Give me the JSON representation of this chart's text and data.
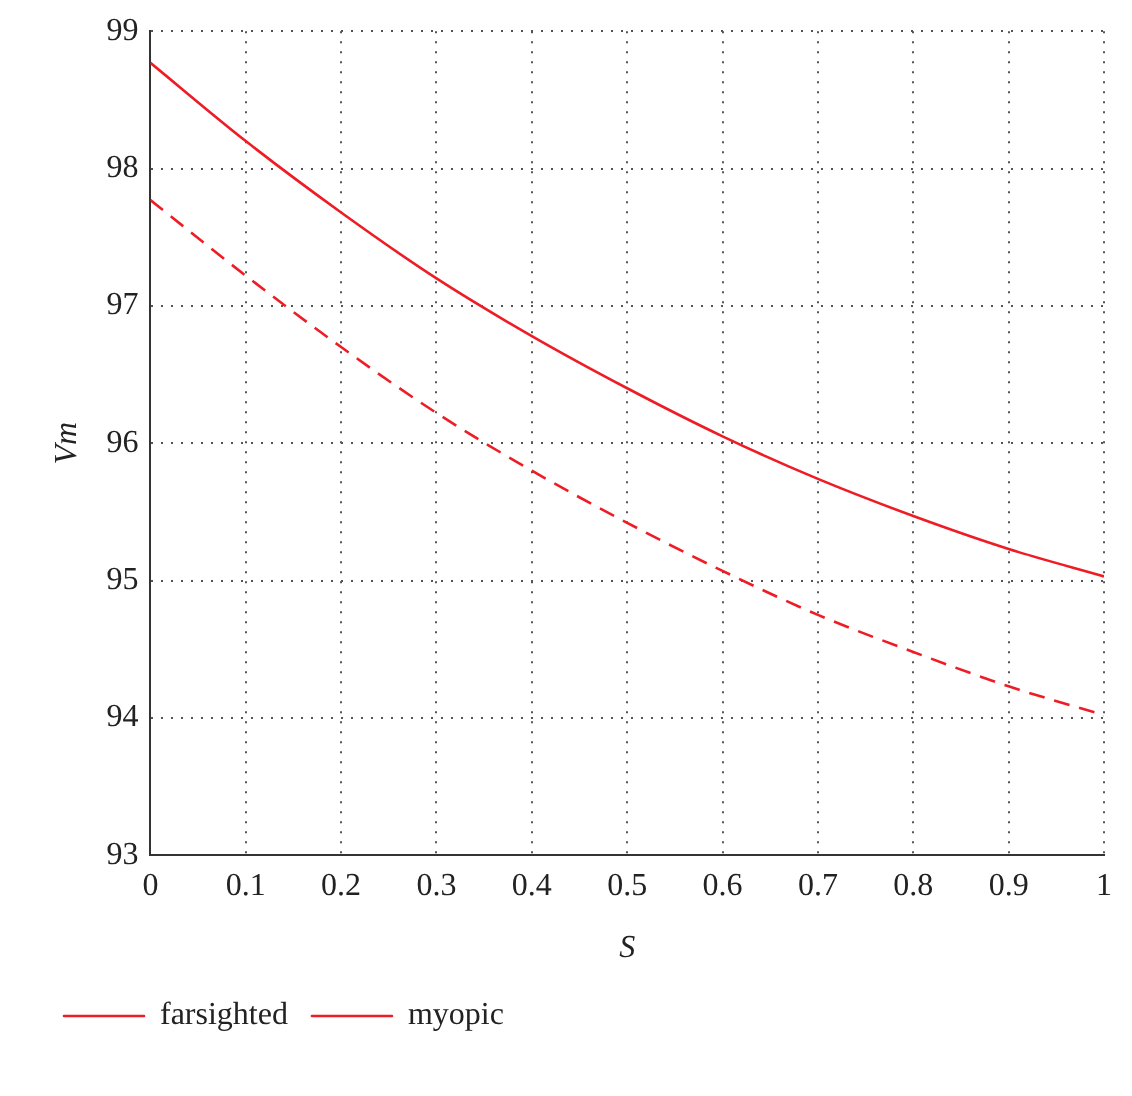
{
  "chart_data": {
    "type": "line",
    "xlabel": "S",
    "ylabel": "Vm",
    "x": [
      0,
      0.1,
      0.2,
      0.3,
      0.4,
      0.5,
      0.6,
      0.7,
      0.8,
      0.9,
      1
    ],
    "series": [
      {
        "name": "farsighted",
        "color": "#ee1c25",
        "line_style": "solid",
        "values": [
          98.77,
          98.2,
          97.68,
          97.2,
          96.78,
          96.4,
          96.05,
          95.74,
          95.47,
          95.23,
          95.03
        ]
      },
      {
        "name": "myopic",
        "color": "#ee1c25",
        "line_style": "dashed",
        "values": [
          97.77,
          97.22,
          96.7,
          96.22,
          95.8,
          95.42,
          95.07,
          94.75,
          94.48,
          94.23,
          94.02
        ]
      }
    ],
    "xlim": [
      0,
      1
    ],
    "xticks": [
      0,
      0.1,
      0.2,
      0.3,
      0.4,
      0.5,
      0.6,
      0.7,
      0.8,
      0.9,
      1
    ],
    "ylim": [
      93,
      99
    ],
    "yticks": [
      93,
      94,
      95,
      96,
      97,
      98,
      99
    ],
    "grid": true,
    "legend": "bottom left",
    "marker": "none"
  }
}
